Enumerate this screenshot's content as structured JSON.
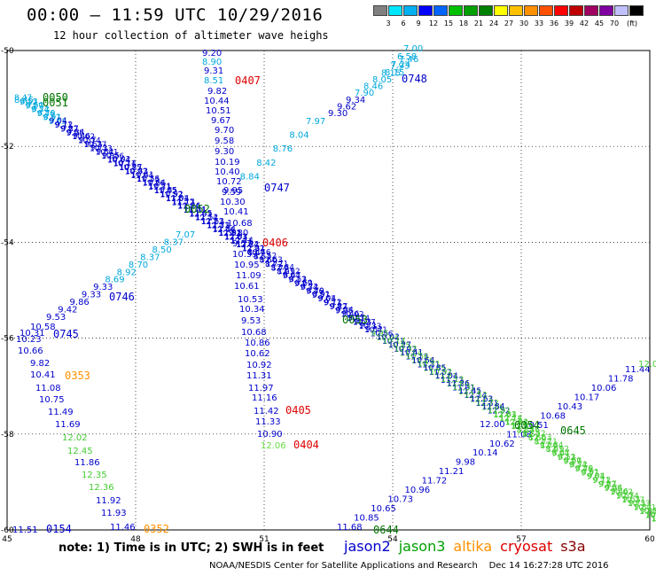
{
  "header": {
    "title": "00:00 – 11:59 UTC 10/29/2016",
    "subtitle": "12 hour collection of altimeter wave heighs"
  },
  "legend": {
    "unit": "(ft)",
    "colors": [
      "#808080",
      "#00e6ff",
      "#00b0f0",
      "#0000ff",
      "#0064ff",
      "#00c000",
      "#00a000",
      "#008000",
      "#ffff00",
      "#ffc000",
      "#ff9000",
      "#ff5000",
      "#ff0000",
      "#c00000",
      "#a00060",
      "#8000a0",
      "#c0c0ff",
      "#000000"
    ],
    "labels": [
      "3",
      "6",
      "9",
      "12",
      "15",
      "18",
      "21",
      "24",
      "27",
      "30",
      "33",
      "36",
      "39",
      "42",
      "45",
      "70"
    ]
  },
  "chart_data": {
    "type": "map-track",
    "region": {
      "lon_range": [
        45,
        60
      ],
      "lat_range": [
        -60,
        -50
      ]
    },
    "x_ticks": [
      "45",
      "48",
      "51",
      "54",
      "57",
      "60"
    ],
    "y_ticks": [
      "-50",
      "-52",
      "-54",
      "-56",
      "-58",
      "-60"
    ],
    "satellite_colors": {
      "jason2": "#0000ff",
      "jason3": "#00a000",
      "altika": "#ff9000",
      "cryosat": "#ff0000",
      "s3a": "#ff0000"
    },
    "tracks": [
      {
        "satellite": "jason2",
        "color": "#0000cc",
        "label": "0407",
        "label_color": "#dd0000",
        "values": [
          "9.20",
          "8.90",
          "9.31",
          "8.51",
          "9.82",
          "10.44",
          "10.51",
          "9.67",
          "9.70",
          "9.58",
          "9.30",
          "10.19",
          "10.40",
          "10.72",
          "9.59",
          "10.30",
          "10.41",
          "10.68",
          "9.80",
          "9.57",
          "10.59",
          "10.95",
          "11.09",
          "10.61",
          "10.53",
          "10.34",
          "9.53",
          "10.68",
          "10.86",
          "10.62",
          "10.92",
          "11.31",
          "11.97",
          "11.16",
          "11.42",
          "11.33",
          "10.90",
          "12.06"
        ]
      },
      {
        "satellite": "jason2",
        "color": "#0000cc",
        "label": "0745",
        "values": [
          "10.58",
          "10.31",
          "10.23",
          "10.66",
          "9.82",
          "10.41",
          "11.08",
          "10.75",
          "11.49",
          "11.69",
          "12.02",
          "12.45",
          "11.86",
          "12.35",
          "12.36",
          "11.92",
          "11.93",
          "11.46"
        ]
      },
      {
        "satellite": "jason2",
        "color": "#0000cc",
        "label": "0746",
        "values": [
          "9.53",
          "9.42",
          "9.86",
          "9.33",
          "9.33",
          "8.69",
          "8.92",
          "8.70",
          "8.37",
          "8.50",
          "8.37",
          "7.07"
        ]
      },
      {
        "satellite": "jason2",
        "color": "#0000cc",
        "label": "0748",
        "values": [
          "9.30",
          "9.62",
          "9.34",
          "7.90",
          "8.46",
          "8.05",
          "8.15",
          "7.93",
          "7.46"
        ]
      },
      {
        "satellite": "jason2",
        "color": "#0000cc",
        "label": "0747",
        "values": [
          "9.95",
          "8.84",
          "8.42",
          "8.76",
          "8.04",
          "7.97"
        ]
      },
      {
        "satellite": "jason2",
        "color": "#0000cc",
        "label": "0644",
        "values": [
          "11.68",
          "10.85",
          "10.65",
          "10.73",
          "10.96",
          "11.72",
          "11.21",
          "9.98",
          "10.14",
          "10.62",
          "11.08",
          "10.51",
          "10.68",
          "10.43",
          "10.17",
          "10.06",
          "11.78",
          "11.44"
        ]
      },
      {
        "satellite": "jason2",
        "color": "#0000cc",
        "label": "0154",
        "values": [
          "11.51"
        ]
      },
      {
        "satellite": "altika",
        "color": "#ff9000",
        "label": "0353",
        "values": []
      },
      {
        "satellite": "altika",
        "color": "#ff9000",
        "label": "0352",
        "values": []
      },
      {
        "satellite": "cryosat",
        "color": "#dd0000",
        "label": "0406",
        "values": []
      },
      {
        "satellite": "cryosat",
        "color": "#dd0000",
        "label": "0405",
        "values": []
      },
      {
        "satellite": "cryosat",
        "color": "#dd0000",
        "label": "0404",
        "values": []
      },
      {
        "satellite": "jason3",
        "color": "#007700",
        "label": "0051",
        "values": [
          "8.45"
        ]
      },
      {
        "satellite": "jason3",
        "color": "#007700",
        "label": "0052",
        "values": []
      },
      {
        "satellite": "jason3",
        "color": "#007700",
        "label": "0053",
        "values": []
      },
      {
        "satellite": "jason3",
        "color": "#007700",
        "label": "0054",
        "values": [
          "12.00"
        ]
      },
      {
        "satellite": "jason3",
        "color": "#007700",
        "label": "0645",
        "values": []
      }
    ]
  },
  "footer": {
    "note": "note: 1) Time is in UTC; 2) SWH is in feet",
    "satellites": [
      {
        "name": "jason2",
        "color": "#0000cc"
      },
      {
        "name": "jason3",
        "color": "#00a000"
      },
      {
        "name": "altika",
        "color": "#ff9000"
      },
      {
        "name": "cryosat",
        "color": "#dd0000"
      },
      {
        "name": "s3a",
        "color": "#880000"
      }
    ],
    "credit": "NOAA/NESDIS Center for Satellite Applications and Research    Dec 14 16:27:28 UTC 2016"
  }
}
